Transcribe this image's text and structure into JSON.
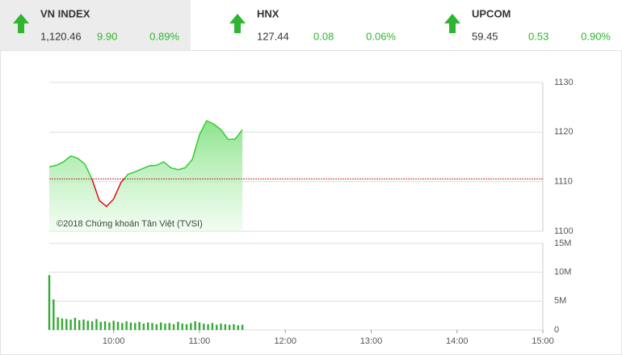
{
  "indices": [
    {
      "name": "VN INDEX",
      "value": "1,120.46",
      "change": "9.90",
      "percent": "0.89%"
    },
    {
      "name": "HNX",
      "value": "127.44",
      "change": "0.08",
      "percent": "0.06%"
    },
    {
      "name": "UPCOM",
      "value": "59.45",
      "change": "0.53",
      "percent": "0.90%"
    }
  ],
  "chart_data": [
    {
      "type": "area",
      "watermark": "©2018 Chứng khoán Tân Việt (TVSI)",
      "x": [
        "09:15",
        "09:20",
        "09:25",
        "09:30",
        "09:35",
        "09:40",
        "09:45",
        "09:50",
        "09:55",
        "10:00",
        "10:05",
        "10:10",
        "10:15",
        "10:20",
        "10:25",
        "10:30",
        "10:35",
        "10:40",
        "10:45",
        "10:50",
        "10:55",
        "11:00",
        "11:05",
        "11:10",
        "11:15",
        "11:20",
        "11:25",
        "11:30"
      ],
      "values": [
        1113.0,
        1113.3,
        1114.0,
        1115.2,
        1114.7,
        1113.5,
        1110.4,
        1106.2,
        1105.0,
        1106.5,
        1109.8,
        1111.5,
        1112.0,
        1112.6,
        1113.2,
        1113.3,
        1114.0,
        1112.8,
        1112.4,
        1112.8,
        1114.5,
        1119.5,
        1122.3,
        1121.6,
        1120.5,
        1118.5,
        1118.6,
        1120.5
      ],
      "reference": 1110.56,
      "color": "#33cc33",
      "down_color": "#dd1111",
      "xlim": [
        "09:15",
        "15:00"
      ],
      "ylim": [
        1100,
        1130
      ],
      "yticks": [
        1100,
        1110,
        1120,
        1130
      ],
      "grid": true
    },
    {
      "type": "bar",
      "color": "#33aa33",
      "x": [
        "09:15",
        "09:18",
        "09:21",
        "09:24",
        "09:27",
        "09:30",
        "09:33",
        "09:36",
        "09:39",
        "09:42",
        "09:45",
        "09:48",
        "09:51",
        "09:54",
        "09:57",
        "10:00",
        "10:03",
        "10:06",
        "10:09",
        "10:12",
        "10:15",
        "10:18",
        "10:21",
        "10:24",
        "10:27",
        "10:30",
        "10:33",
        "10:36",
        "10:39",
        "10:42",
        "10:45",
        "10:48",
        "10:51",
        "10:54",
        "10:57",
        "11:00",
        "11:03",
        "11:06",
        "11:09",
        "11:12",
        "11:15",
        "11:18",
        "11:21",
        "11:24",
        "11:27",
        "11:30"
      ],
      "values": [
        9.5,
        5.3,
        2.2,
        2.0,
        1.9,
        1.8,
        2.1,
        1.7,
        1.8,
        1.6,
        1.5,
        1.9,
        1.4,
        1.5,
        1.3,
        1.6,
        1.4,
        1.2,
        1.5,
        1.3,
        1.2,
        1.4,
        1.1,
        1.3,
        1.2,
        1.0,
        1.3,
        1.1,
        1.2,
        1.0,
        1.4,
        1.1,
        1.0,
        1.2,
        1.5,
        1.3,
        1.1,
        1.0,
        1.2,
        0.9,
        1.1,
        1.0,
        0.9,
        1.0,
        0.8,
        0.9
      ],
      "xlim": [
        "09:15",
        "15:00"
      ],
      "xticks": [
        "10:00",
        "11:00",
        "12:00",
        "13:00",
        "14:00",
        "15:00"
      ],
      "ylim": [
        0,
        15
      ],
      "yticks": [
        0,
        {
          "value": 5,
          "label": "5M"
        },
        {
          "value": 10,
          "label": "10M"
        },
        {
          "value": 15,
          "label": "15M"
        }
      ],
      "grid": true
    }
  ]
}
